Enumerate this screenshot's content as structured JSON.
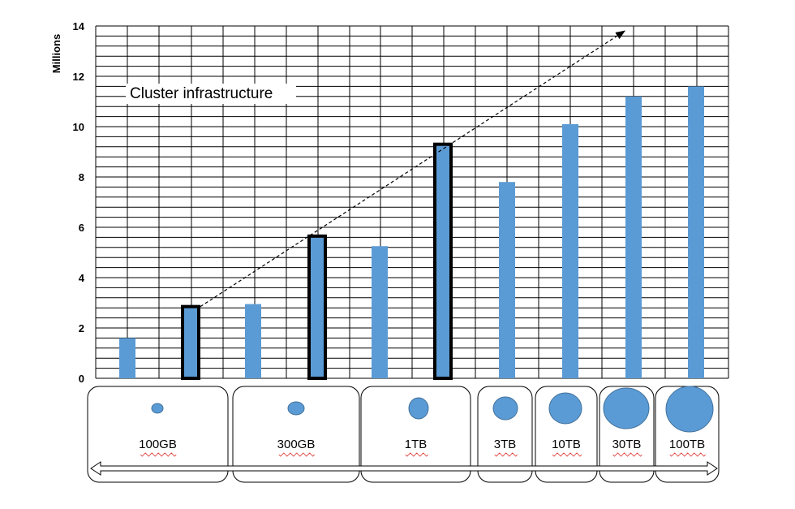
{
  "chart_data": {
    "type": "bar",
    "title": "",
    "annotation": "Cluster  infrastructure",
    "xlabel": "",
    "ylabel": "Millions",
    "ylim": [
      0,
      14
    ],
    "yticks": [
      0,
      2,
      4,
      6,
      8,
      10,
      12,
      14
    ],
    "grid": true,
    "categories": [
      "100GB",
      "100GB",
      "300GB",
      "300GB",
      "1TB",
      "1TB",
      "3TB",
      "10TB",
      "30TB",
      "100TB"
    ],
    "values": [
      1.6,
      2.85,
      2.95,
      5.65,
      5.25,
      9.3,
      7.8,
      10.1,
      11.2,
      11.6
    ],
    "highlighted": [
      false,
      true,
      false,
      true,
      false,
      true,
      false,
      false,
      false,
      false
    ],
    "bar_color": "#5b9bd5",
    "highlight_border_color": "#000000",
    "trend_arrow": {
      "style": "dashed",
      "from_bar_index": 1,
      "to_value": 13.8
    },
    "data_sizes": [
      {
        "label": "100GB",
        "bar_indices": [
          0,
          1
        ]
      },
      {
        "label": "300GB",
        "bar_indices": [
          2,
          3
        ]
      },
      {
        "label": "1TB",
        "bar_indices": [
          4,
          5
        ]
      },
      {
        "label": "3TB",
        "bar_indices": [
          6
        ]
      },
      {
        "label": "10TB",
        "bar_indices": [
          7
        ]
      },
      {
        "label": "30TB",
        "bar_indices": [
          8
        ]
      },
      {
        "label": "100TB",
        "bar_indices": [
          9
        ]
      }
    ],
    "axis_arrow": "double-headed"
  }
}
